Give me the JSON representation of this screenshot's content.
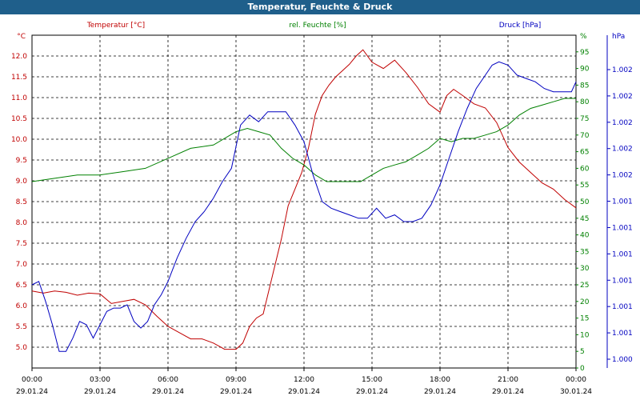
{
  "window": {
    "title": "Temperatur, Feuchte & Druck"
  },
  "chart_data": {
    "type": "line",
    "title": "Temperatur, Feuchte & Druck",
    "grid": true,
    "x_ticks": [
      {
        "time": "00:00",
        "date": "29.01.24"
      },
      {
        "time": "03:00",
        "date": "29.01.24"
      },
      {
        "time": "06:00",
        "date": "29.01.24"
      },
      {
        "time": "09:00",
        "date": "29.01.24"
      },
      {
        "time": "12:00",
        "date": "29.01.24"
      },
      {
        "time": "15:00",
        "date": "29.01.24"
      },
      {
        "time": "18:00",
        "date": "29.01.24"
      },
      {
        "time": "21:00",
        "date": "29.01.24"
      },
      {
        "time": "00:00",
        "date": "30.01.24"
      }
    ],
    "axes": {
      "temperature": {
        "unit": "°C",
        "range": [
          4.5,
          12.5
        ],
        "ticks": [
          "5.0",
          "5.5",
          "6.0",
          "6.5",
          "7.0",
          "7.5",
          "8.0",
          "8.5",
          "9.0",
          "9.5",
          "10.0",
          "10.5",
          "11.0",
          "11.5",
          "12.0"
        ],
        "tick_values": [
          5.0,
          5.5,
          6.0,
          6.5,
          7.0,
          7.5,
          8.0,
          8.5,
          9.0,
          9.5,
          10.0,
          10.5,
          11.0,
          11.5,
          12.0
        ],
        "color": "#c00000"
      },
      "humidity": {
        "unit": "%",
        "range": [
          0,
          100
        ],
        "ticks": [
          "0",
          "5",
          "10",
          "15",
          "20",
          "25",
          "30",
          "35",
          "40",
          "45",
          "50",
          "55",
          "60",
          "65",
          "70",
          "75",
          "80",
          "85",
          "90",
          "95"
        ],
        "tick_values": [
          0,
          5,
          10,
          15,
          20,
          25,
          30,
          35,
          40,
          45,
          50,
          55,
          60,
          65,
          70,
          75,
          80,
          85,
          90,
          95
        ],
        "color": "#008000"
      },
      "pressure": {
        "unit": "hPa",
        "ticks": [
          "1.000",
          "1.001",
          "1.001",
          "1.001",
          "1.001",
          "1.001",
          "1.001",
          "1.002",
          "1.002",
          "1.002",
          "1.002",
          "1.002"
        ],
        "color": "#0000c0"
      }
    },
    "series": [
      {
        "name": "Temperatur [°C]",
        "axis": "temperature",
        "color": "#c00000",
        "x": [
          0,
          0.5,
          1,
          1.5,
          2,
          2.5,
          3,
          3.5,
          4,
          4.5,
          5,
          5.5,
          6,
          6.5,
          7,
          7.5,
          8,
          8.5,
          9,
          9.3,
          9.6,
          9.9,
          10.2,
          10.6,
          11,
          11.3,
          11.6,
          11.9,
          12.2,
          12.5,
          12.8,
          13.1,
          13.4,
          13.7,
          14,
          14.3,
          14.6,
          15,
          15.5,
          16,
          16.5,
          17,
          17.5,
          18,
          18.3,
          18.6,
          19,
          19.5,
          20,
          20.5,
          21,
          21.5,
          22,
          22.5,
          23,
          23.5,
          24
        ],
        "y": [
          6.35,
          6.3,
          6.35,
          6.32,
          6.25,
          6.3,
          6.28,
          6.05,
          6.1,
          6.15,
          6.02,
          5.75,
          5.5,
          5.35,
          5.2,
          5.2,
          5.1,
          4.95,
          4.95,
          5.1,
          5.5,
          5.7,
          5.8,
          6.7,
          7.6,
          8.4,
          8.8,
          9.2,
          9.8,
          10.6,
          11.05,
          11.3,
          11.5,
          11.65,
          11.8,
          12.0,
          12.15,
          11.85,
          11.7,
          11.9,
          11.6,
          11.25,
          10.85,
          10.65,
          11.05,
          11.2,
          11.05,
          10.85,
          10.75,
          10.4,
          9.8,
          9.45,
          9.2,
          8.95,
          8.8,
          8.55,
          8.35
        ]
      },
      {
        "name": "rel. Feuchte [%]",
        "axis": "humidity",
        "color": "#008000",
        "x": [
          0,
          1,
          2,
          3,
          4,
          5,
          6,
          7,
          8,
          9,
          9.5,
          10,
          10.5,
          11,
          11.5,
          12,
          12.5,
          13,
          13.5,
          14,
          14.5,
          15,
          15.5,
          16,
          16.5,
          17,
          17.5,
          18,
          18.5,
          19,
          19.5,
          20,
          20.5,
          21,
          21.5,
          22,
          22.5,
          23,
          23.5,
          24
        ],
        "y": [
          56,
          57,
          58,
          58,
          59,
          60,
          63,
          66,
          67,
          71,
          72,
          71,
          70,
          66,
          63,
          61,
          58,
          56,
          56,
          56,
          56,
          58,
          60,
          61,
          62,
          64,
          66,
          69,
          68,
          69,
          69,
          70,
          71,
          73,
          76,
          78,
          79,
          80,
          81,
          81
        ]
      },
      {
        "name": "Druck [hPa]",
        "axis": "pressure",
        "color": "#0000c0",
        "y_range": [
          0,
          100
        ],
        "x": [
          0,
          0.3,
          0.6,
          0.9,
          1.2,
          1.5,
          1.8,
          2.1,
          2.4,
          2.7,
          3,
          3.3,
          3.6,
          3.9,
          4.2,
          4.5,
          4.8,
          5.1,
          5.4,
          5.7,
          6,
          6.4,
          6.8,
          7.2,
          7.6,
          8,
          8.4,
          8.8,
          9.2,
          9.6,
          10,
          10.4,
          10.8,
          11.2,
          11.6,
          12,
          12.4,
          12.8,
          13.2,
          13.6,
          14,
          14.4,
          14.8,
          15.2,
          15.6,
          16,
          16.4,
          16.8,
          17.2,
          17.6,
          18,
          18.4,
          18.8,
          19.2,
          19.6,
          20,
          20.3,
          20.6,
          21,
          21.4,
          21.8,
          22.2,
          22.6,
          23,
          23.4,
          23.8,
          24
        ],
        "y": [
          25,
          26,
          20,
          13,
          5,
          5,
          9,
          14,
          13,
          9,
          13,
          17,
          18,
          18,
          19,
          14,
          12,
          14,
          19,
          22,
          26,
          33,
          39,
          44,
          47,
          51,
          56,
          60,
          73,
          76,
          74,
          77,
          77,
          77,
          73,
          68,
          58,
          50,
          48,
          47,
          46,
          45,
          45,
          48,
          45,
          46,
          44,
          44,
          45,
          49,
          55,
          63,
          71,
          78,
          84,
          88,
          91,
          92,
          91,
          88,
          87,
          86,
          84,
          83,
          83,
          83,
          86
        ]
      }
    ]
  }
}
